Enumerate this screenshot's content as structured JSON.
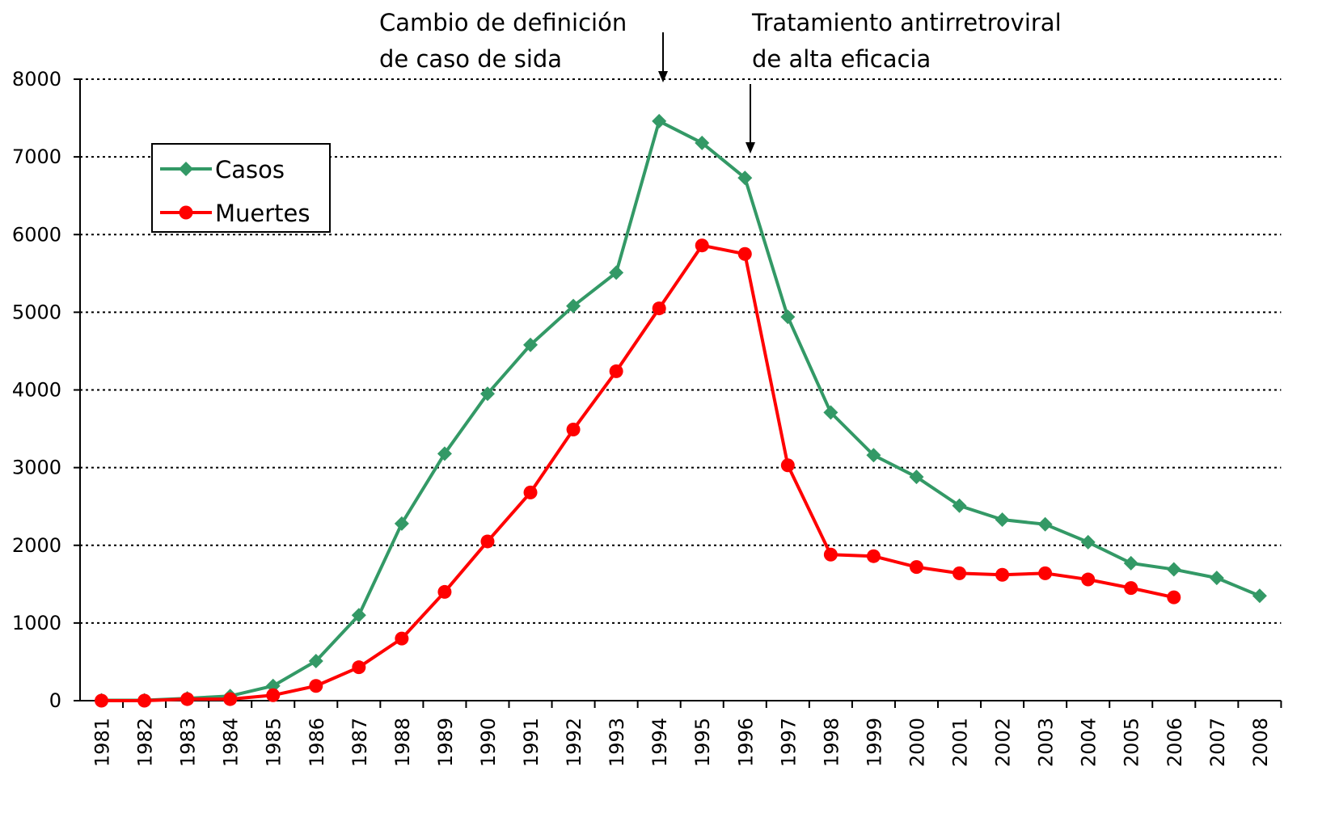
{
  "chart_data": {
    "type": "line",
    "annotations": [
      {
        "lines": [
          "Cambio de definición",
          "de caso de sida"
        ],
        "category": "1994"
      },
      {
        "lines": [
          "Tratamiento antirretroviral",
          "de alta eficacia"
        ],
        "category": "1996"
      }
    ],
    "categories": [
      "1981",
      "1982",
      "1983",
      "1984",
      "1985",
      "1986",
      "1987",
      "1988",
      "1989",
      "1990",
      "1991",
      "1992",
      "1993",
      "1994",
      "1995",
      "1996",
      "1997",
      "1998",
      "1999",
      "2000",
      "2001",
      "2002",
      "2003",
      "2004",
      "2005",
      "2006",
      "2007",
      "2008"
    ],
    "series": [
      {
        "name": "Casos",
        "color": "#339966",
        "marker": "diamond",
        "values": [
          5,
          5,
          30,
          60,
          190,
          510,
          1100,
          2280,
          3180,
          3950,
          4580,
          5080,
          5510,
          7460,
          7180,
          6730,
          4940,
          3710,
          3160,
          2880,
          2510,
          2330,
          2270,
          2040,
          1770,
          1690,
          1580,
          1350
        ]
      },
      {
        "name": "Muertes",
        "color": "#ff0000",
        "marker": "circle",
        "values": [
          0,
          0,
          20,
          20,
          70,
          190,
          430,
          800,
          1400,
          2050,
          2680,
          3490,
          4240,
          5050,
          5860,
          5750,
          3030,
          1880,
          1860,
          1720,
          1640,
          1620,
          1640,
          1560,
          1450,
          1330,
          null,
          null
        ]
      }
    ],
    "ylim": [
      0,
      8000
    ],
    "yticks": [
      0,
      1000,
      2000,
      3000,
      4000,
      5000,
      6000,
      7000,
      8000
    ],
    "grid": true,
    "legend": "upper left"
  }
}
